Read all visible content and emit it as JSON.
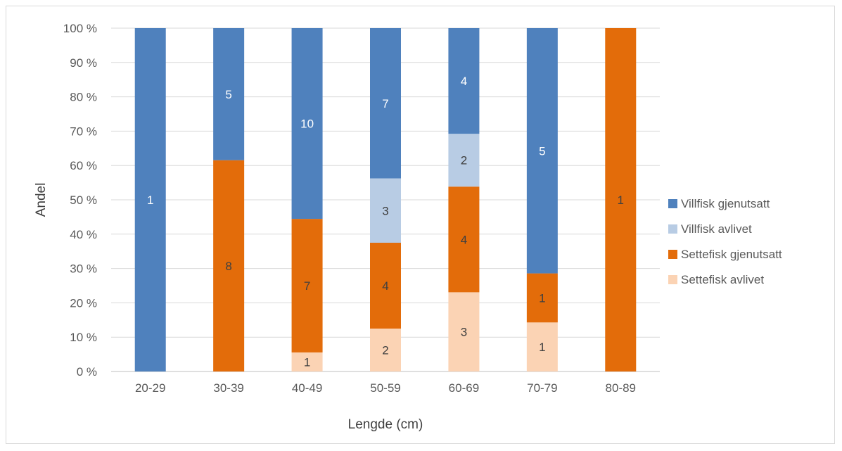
{
  "chart_data": {
    "type": "bar",
    "stacked": "percent",
    "categories": [
      "20-29",
      "30-39",
      "40-49",
      "50-59",
      "60-69",
      "70-79",
      "80-89"
    ],
    "series": [
      {
        "name": "Settefisk avlivet",
        "color": "#fbd3b4",
        "label_color": "#404040",
        "values": [
          0,
          0,
          1,
          2,
          3,
          1,
          0
        ]
      },
      {
        "name": "Settefisk gjenutsatt",
        "color": "#e36c0a",
        "label_color": "#404040",
        "values": [
          0,
          8,
          7,
          4,
          4,
          1,
          1
        ]
      },
      {
        "name": "Villfisk avlivet",
        "color": "#b8cce4",
        "label_color": "#404040",
        "values": [
          0,
          0,
          0,
          3,
          2,
          0,
          0
        ]
      },
      {
        "name": "Villfisk gjenutsatt",
        "color": "#4f81bd",
        "label_color": "#ffffff",
        "values": [
          1,
          5,
          10,
          7,
          4,
          5,
          0
        ]
      }
    ],
    "xlabel": "Lengde (cm)",
    "ylabel": "Andel",
    "ylim": [
      0,
      100
    ],
    "yticks": [
      "0 %",
      "10 %",
      "20 %",
      "30 %",
      "40 %",
      "50 %",
      "60 %",
      "70 %",
      "80 %",
      "90 %",
      "100 %"
    ],
    "legend_order": [
      "Villfisk gjenutsatt",
      "Villfisk avlivet",
      "Settefisk gjenutsatt",
      "Settefisk avlivet"
    ],
    "legend_position": "right",
    "grid": true
  }
}
